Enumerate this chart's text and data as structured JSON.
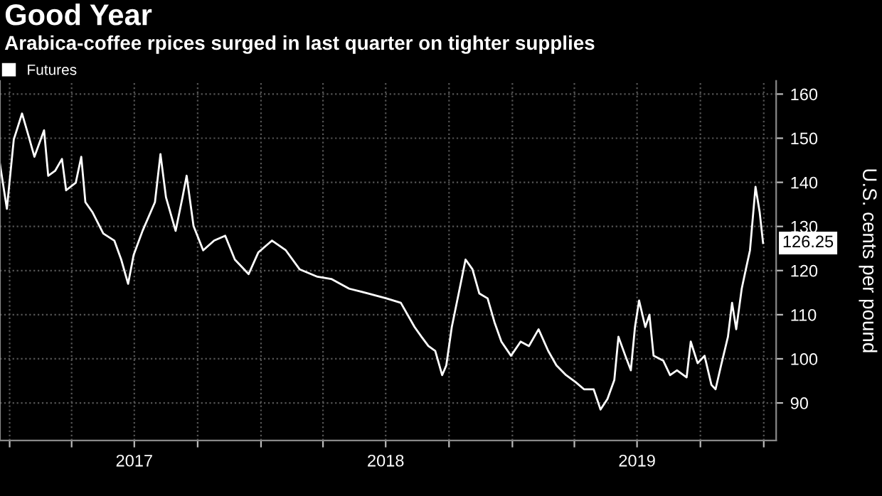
{
  "chart_data": {
    "type": "line",
    "title": "Good Year",
    "subtitle": "Arabica-coffee rpices surged in last quarter on tighter supplies",
    "y2label": "U.S. cents per pound",
    "x": [
      "2016-12-18",
      "2016-12-28",
      "2017-01-07",
      "2017-01-19",
      "2017-01-27",
      "2017-02-06",
      "2017-02-20",
      "2017-02-26",
      "2017-03-08",
      "2017-03-18",
      "2017-03-24",
      "2017-04-07",
      "2017-04-15",
      "2017-04-21",
      "2017-05-01",
      "2017-05-17",
      "2017-06-02",
      "2017-06-12",
      "2017-06-22",
      "2017-06-30",
      "2017-07-13",
      "2017-07-31",
      "2017-08-08",
      "2017-08-16",
      "2017-08-30",
      "2017-09-09",
      "2017-09-15",
      "2017-09-25",
      "2017-10-09",
      "2017-10-25",
      "2017-11-10",
      "2017-11-24",
      "2017-12-14",
      "2017-12-28",
      "2018-01-17",
      "2018-02-06",
      "2018-02-26",
      "2018-03-24",
      "2018-04-13",
      "2018-05-09",
      "2018-06-06",
      "2018-07-02",
      "2018-07-23",
      "2018-08-12",
      "2018-08-22",
      "2018-09-01",
      "2018-09-11",
      "2018-09-21",
      "2018-09-27",
      "2018-10-05",
      "2018-10-15",
      "2018-10-25",
      "2018-11-04",
      "2018-11-14",
      "2018-11-26",
      "2018-12-06",
      "2018-12-16",
      "2018-12-30",
      "2019-01-13",
      "2019-01-25",
      "2019-02-08",
      "2019-02-22",
      "2019-03-06",
      "2019-03-20",
      "2019-04-03",
      "2019-04-15",
      "2019-04-29",
      "2019-05-09",
      "2019-05-19",
      "2019-05-29",
      "2019-06-04",
      "2019-06-14",
      "2019-06-22",
      "2019-06-28",
      "2019-07-04",
      "2019-07-13",
      "2019-07-19",
      "2019-07-25",
      "2019-08-08",
      "2019-08-18",
      "2019-08-28",
      "2019-09-11",
      "2019-09-17",
      "2019-09-27",
      "2019-10-07",
      "2019-10-17",
      "2019-10-23",
      "2019-10-31",
      "2019-11-10",
      "2019-11-16",
      "2019-11-22",
      "2019-11-30",
      "2019-12-06",
      "2019-12-12",
      "2019-12-20",
      "2019-12-26",
      "2019-12-31"
    ],
    "series": [
      {
        "name": "Futures",
        "color": "#ffffff",
        "values": [
          144.1,
          134,
          149.7,
          155.6,
          151.3,
          145.8,
          151.8,
          141.5,
          142.6,
          145.3,
          138.2,
          139.9,
          145.8,
          135.5,
          133.3,
          128.4,
          126.8,
          122.5,
          117,
          123.5,
          129,
          135.5,
          146.4,
          136.6,
          129,
          136.6,
          141.5,
          130.1,
          124.6,
          126.8,
          127.9,
          122.5,
          119.2,
          124.1,
          126.8,
          124.6,
          120.3,
          118.6,
          118.1,
          115.9,
          114.8,
          113.7,
          112.7,
          107.2,
          105,
          102.9,
          101.8,
          96.3,
          98.5,
          107.2,
          114.8,
          122.5,
          120.3,
          114.8,
          113.7,
          108.3,
          103.9,
          100.7,
          103.9,
          102.9,
          106.7,
          101.8,
          98.5,
          96.3,
          94.7,
          93.1,
          93.1,
          88.5,
          90.9,
          95.2,
          105,
          100.7,
          97.4,
          107.2,
          113.2,
          107.2,
          110,
          100.7,
          99.6,
          96.3,
          97.4,
          95.8,
          103.9,
          99,
          100.7,
          94.1,
          93.1,
          98.5,
          105,
          112.7,
          106.7,
          115.9,
          120.3,
          124.6,
          139,
          133.3,
          126.25
        ]
      }
    ],
    "annotations": [
      {
        "text": "126.25",
        "x": "2019-12-31",
        "y": 126.25
      }
    ],
    "xlim": [
      "2016-12-18",
      "2020-01-19"
    ],
    "xticks": [
      {
        "value": "2017-01-01",
        "label": null
      },
      {
        "value": "2017-04-01",
        "label": null
      },
      {
        "value": "2017-07-01",
        "label": "2017"
      },
      {
        "value": "2017-10-01",
        "label": null
      },
      {
        "value": "2018-01-01",
        "label": null
      },
      {
        "value": "2018-04-01",
        "label": null
      },
      {
        "value": "2018-07-01",
        "label": "2018"
      },
      {
        "value": "2018-10-01",
        "label": null
      },
      {
        "value": "2019-01-01",
        "label": null
      },
      {
        "value": "2019-04-01",
        "label": null
      },
      {
        "value": "2019-07-01",
        "label": "2019"
      },
      {
        "value": "2019-10-01",
        "label": null
      },
      {
        "value": "2020-01-01",
        "label": null
      }
    ],
    "ylim": [
      81.5,
      163
    ],
    "yticks": [
      90,
      100,
      110,
      120,
      130,
      140,
      150,
      160
    ],
    "grid": true,
    "legend": "top left",
    "line_style": "solid",
    "marker": "none"
  }
}
